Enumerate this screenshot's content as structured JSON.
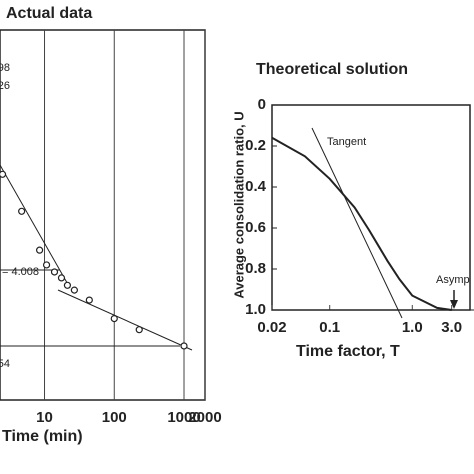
{
  "chart_data": [
    {
      "type": "scatter",
      "title": "Actual data",
      "x_label": "Time (min)",
      "xscale": "log",
      "xlim": [
        2.3,
        2000
      ],
      "xticks": [
        10,
        100,
        1000,
        2000
      ],
      "ylim": [
        0,
        100
      ],
      "grid": true,
      "color": "#222222",
      "annotations": [
        "98",
        "26",
        "= 4.008",
        "54"
      ],
      "x": [
        2.5,
        4.7,
        8.5,
        10.7,
        13.9,
        17.5,
        21.3,
        26.8,
        43.9,
        100,
        228,
        1000
      ],
      "y": [
        61,
        51,
        40.5,
        36.5,
        34.6,
        33,
        31,
        29.7,
        27,
        22,
        19,
        14.6
      ]
    },
    {
      "type": "line",
      "title": "Theoretical solution",
      "x_label": "Time factor, T",
      "y_label": "Average consolidation ratio, U",
      "xscale": "log",
      "xlim": [
        0.02,
        5
      ],
      "xticks": [
        0.02,
        0.1,
        {
          "value": 1,
          "label": "1.0"
        },
        {
          "value": 3,
          "label": "3.0"
        }
      ],
      "ylim": [
        0,
        1
      ],
      "y_inverted": true,
      "yticks": [
        0,
        0.2,
        0.4,
        0.6,
        0.8,
        {
          "value": 1,
          "label": "1.0"
        }
      ],
      "annotations": [
        "Tangent",
        "Asymp"
      ],
      "color": "#222222",
      "x": [
        0.02,
        0.05,
        0.1,
        0.2,
        0.3,
        0.5,
        0.7,
        1,
        2,
        3
      ],
      "y": [
        0.16,
        0.25,
        0.36,
        0.5,
        0.61,
        0.76,
        0.85,
        0.93,
        0.99,
        1
      ]
    }
  ]
}
